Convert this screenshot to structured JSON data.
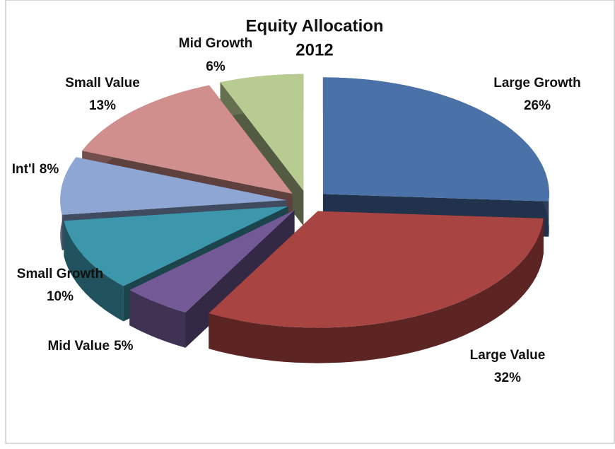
{
  "chart_data": {
    "type": "pie",
    "title": "Equity Allocation",
    "subtitle": "2012",
    "categories": [
      "Large Growth",
      "Large Value",
      "Mid Value",
      "Small Growth",
      "Int'l",
      "Small Value",
      "Mid Growth"
    ],
    "values": [
      26,
      32,
      5,
      10,
      8,
      13,
      6
    ],
    "value_labels": [
      "26%",
      "32%",
      "5%",
      "10%",
      "8%",
      "13%",
      "6%"
    ],
    "colors": [
      "#4a72a8",
      "#a84442",
      "#735a96",
      "#3c96ac",
      "#8ea6d4",
      "#d08e8c",
      "#b8cc92"
    ]
  }
}
